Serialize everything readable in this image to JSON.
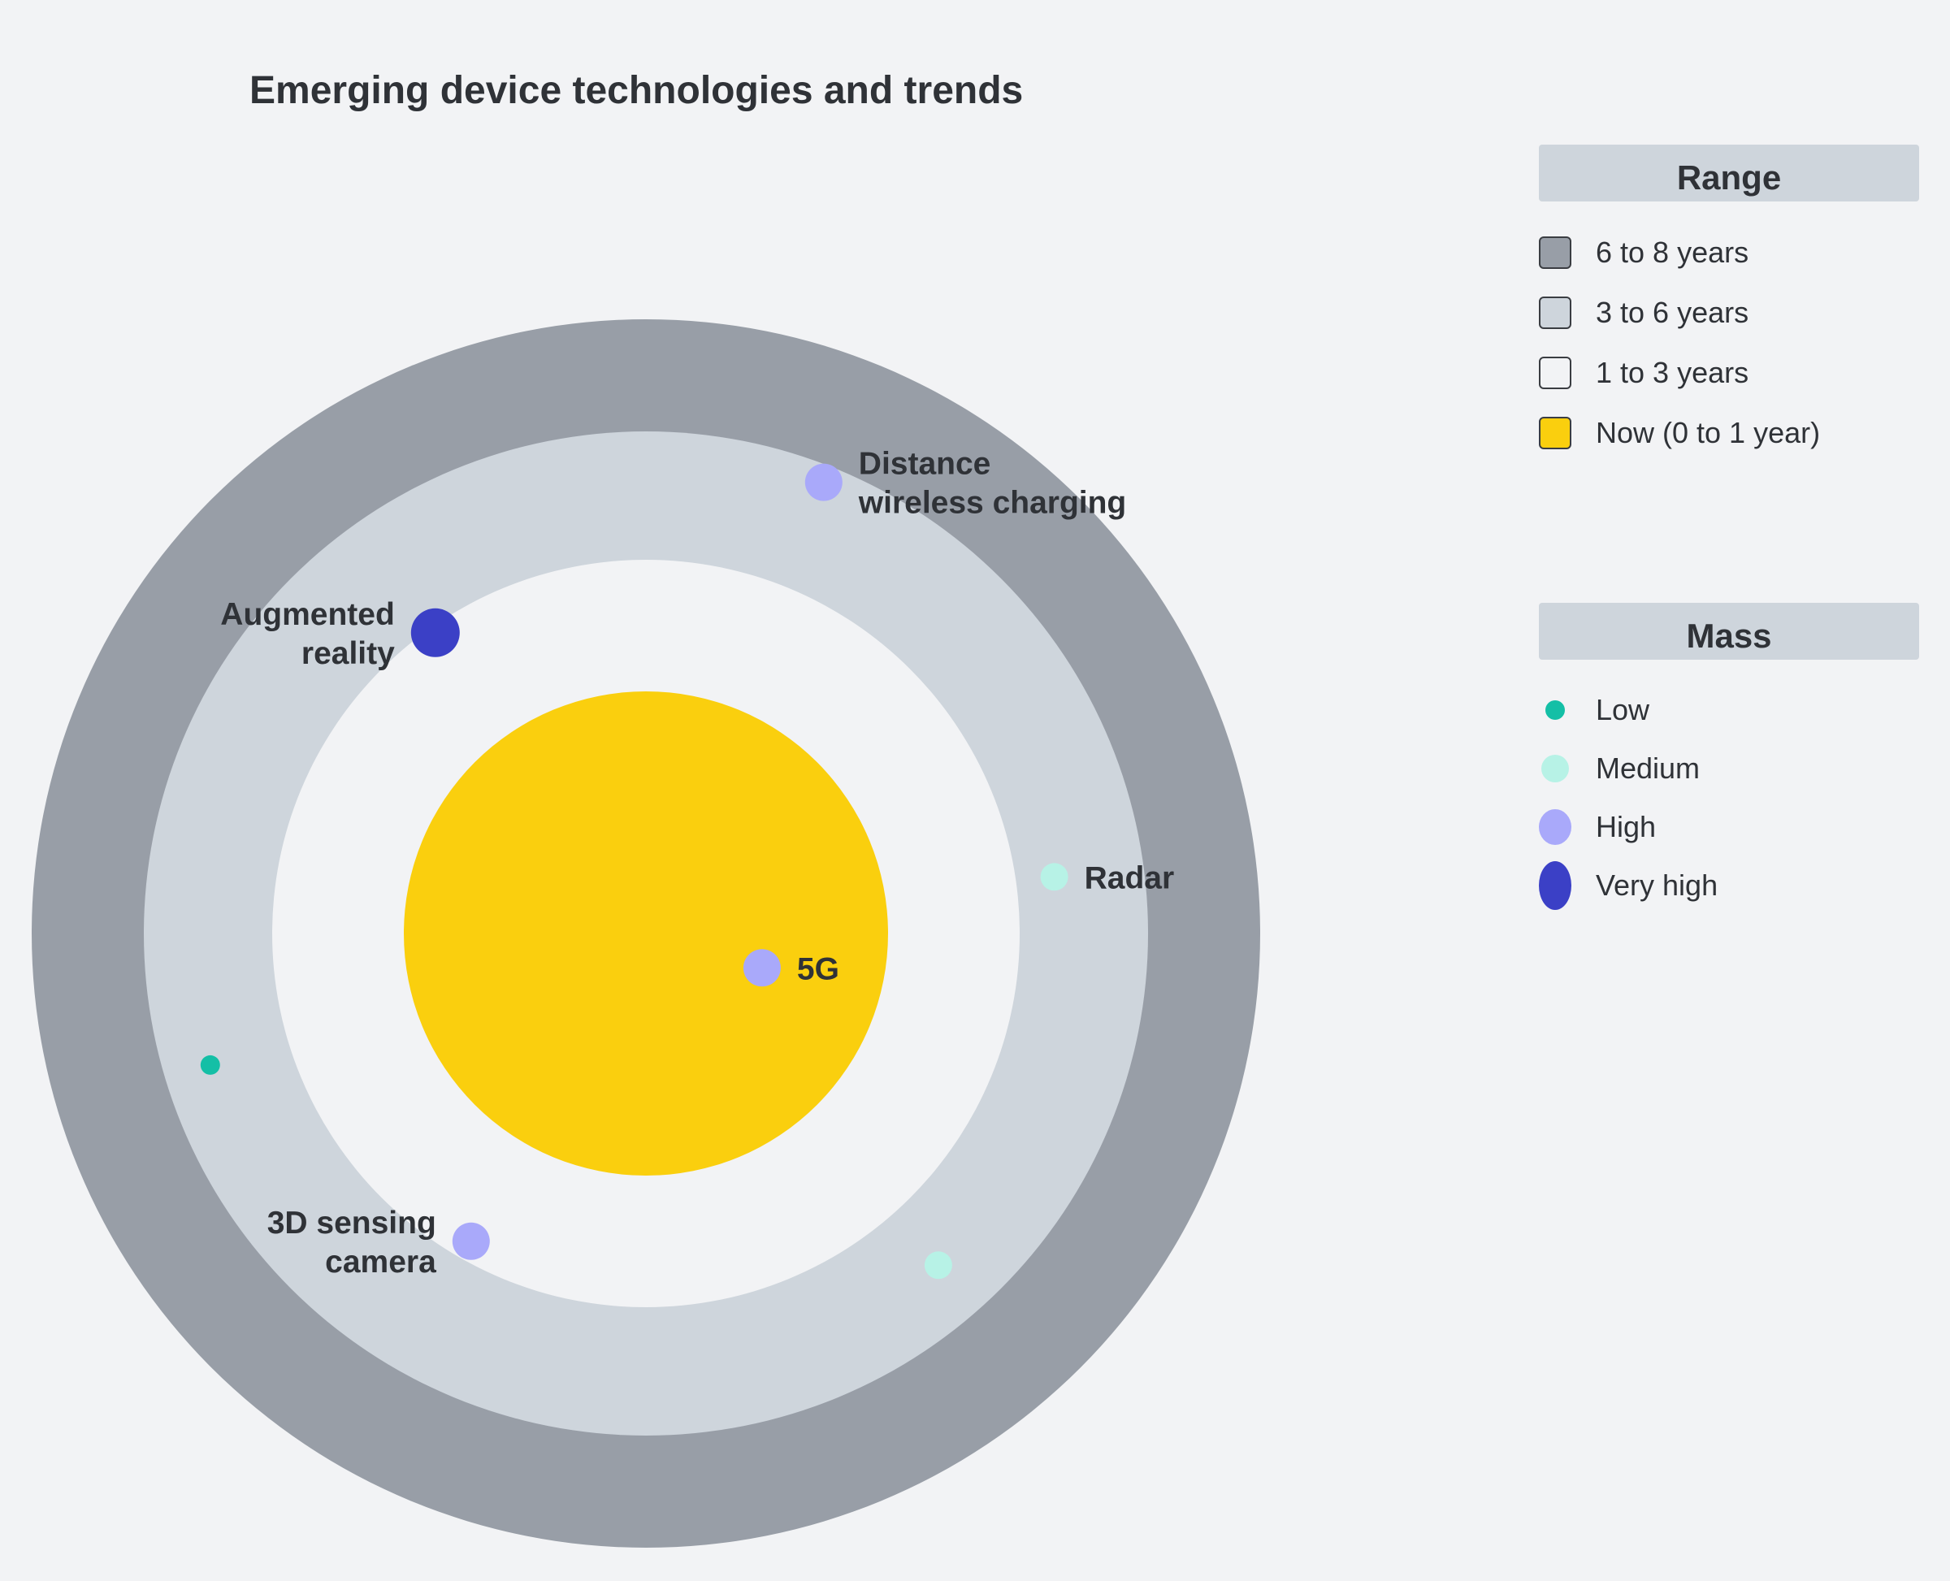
{
  "chart_data": {
    "type": "radar-rings",
    "title": "Emerging device technologies and trends",
    "rings": [
      {
        "label": "6 to 8 years",
        "color": "#989ea7"
      },
      {
        "label": "3 to 6 years",
        "color": "#ced5dc"
      },
      {
        "label": "1 to 3 years",
        "color": "#f2f3f5"
      },
      {
        "label": "Now (0 to 1 year)",
        "color": "#facf0e"
      }
    ],
    "mass_levels": [
      {
        "label": "Low",
        "color": "#14bfa6",
        "size": 1
      },
      {
        "label": "Medium",
        "color": "#b7f2e6",
        "size": 2
      },
      {
        "label": "High",
        "color": "#a9a9fa",
        "size": 3
      },
      {
        "label": "Very high",
        "color": "#3b40c6",
        "size": 4
      }
    ],
    "points": [
      {
        "label": "Distance wireless charging",
        "ring": "3 to 6 years",
        "mass": "High",
        "angle_deg": 68.5,
        "distance_years": 5.6,
        "label_side": "right"
      },
      {
        "label": "Augmented reality",
        "ring": "1 to 3 years",
        "mass": "Very high",
        "angle_deg": 125,
        "distance_years": 2.9,
        "label_side": "left"
      },
      {
        "label": "Radar",
        "ring": "3 to 6 years",
        "mass": "Medium",
        "angle_deg": 7.9,
        "distance_years": 3.9,
        "label_side": "right"
      },
      {
        "label": "5G",
        "ring": "Now (0 to 1 year)",
        "mass": "High",
        "angle_deg": -16.5,
        "distance_years": 0.5,
        "label_side": "right"
      },
      {
        "label": "",
        "ring": "3 to 6 years",
        "mass": "Low",
        "angle_deg": -163.2,
        "distance_years": 4.9,
        "label_side": "none"
      },
      {
        "label": "3D sensing camera",
        "ring": "1 to 3 years",
        "mass": "High",
        "angle_deg": -119.6,
        "distance_years": 2.7,
        "label_side": "left"
      },
      {
        "label": "",
        "ring": "3 to 6 years",
        "mass": "Medium",
        "angle_deg": -48.6,
        "distance_years": 4.6,
        "label_side": "none"
      }
    ]
  },
  "legend_range": {
    "header": "Range",
    "items": [
      {
        "label": "6 to 8 years",
        "color": "#989ea7"
      },
      {
        "label": "3 to 6 years",
        "color": "#ced5dc"
      },
      {
        "label": "1 to 3 years",
        "color": "#f2f3f5"
      },
      {
        "label": "Now (0 to 1 year)",
        "color": "#facf0e"
      }
    ]
  },
  "legend_mass": {
    "header": "Mass",
    "items": [
      {
        "label": "Low",
        "color": "#14bfa6"
      },
      {
        "label": "Medium",
        "color": "#b7f2e6"
      },
      {
        "label": "High",
        "color": "#a9a9fa"
      },
      {
        "label": "Very high",
        "color": "#3b40c6"
      }
    ]
  }
}
